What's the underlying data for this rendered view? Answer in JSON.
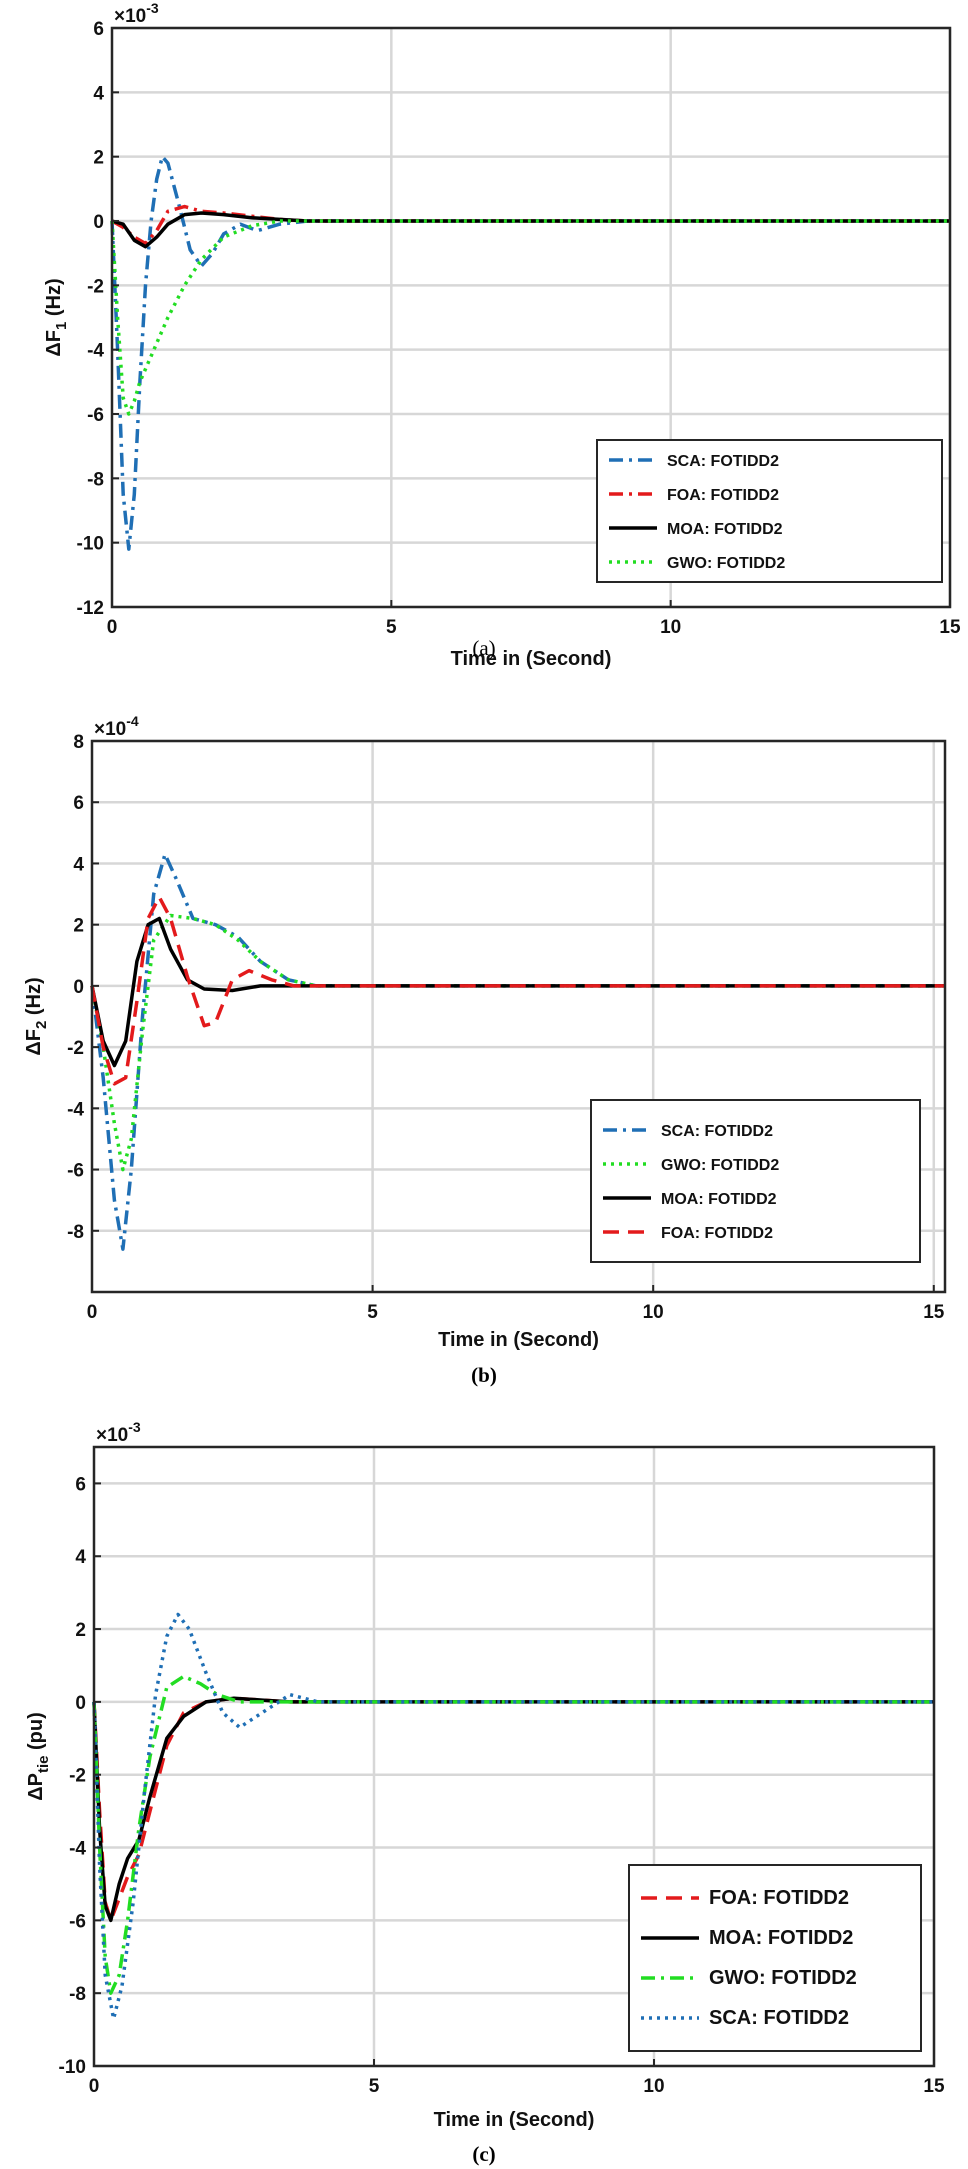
{
  "chart_data": [
    {
      "type": "line",
      "caption": "(a)",
      "exponent": "×10",
      "exponent_power": "-3",
      "ylabel_prefix": "ΔF",
      "ylabel_sub": "1",
      "ylabel_suffix": " (Hz)",
      "xlabel": "Time in (Second)",
      "xlim": [
        0,
        15
      ],
      "ylim": [
        -12,
        6
      ],
      "xticks": [
        0,
        5,
        10,
        15
      ],
      "yticks": [
        -12,
        -10,
        -8,
        -6,
        -4,
        -2,
        0,
        2,
        4,
        6
      ],
      "legend_position": "bottom-right",
      "series": [
        {
          "name": "SCA: FOTIDD2",
          "color": "#1f6fb5",
          "style": "dashdot",
          "x": [
            0,
            0.1,
            0.2,
            0.3,
            0.4,
            0.5,
            0.6,
            0.7,
            0.8,
            0.9,
            1.0,
            1.2,
            1.4,
            1.6,
            1.8,
            2.0,
            2.3,
            2.6,
            3.0,
            3.5,
            4.0,
            15
          ],
          "y": [
            0,
            -4,
            -8.5,
            -10.2,
            -8.5,
            -5,
            -2,
            0,
            1.3,
            2.0,
            1.8,
            0.5,
            -0.9,
            -1.4,
            -1.0,
            -0.4,
            -0.1,
            -0.3,
            -0.1,
            0,
            0,
            0
          ]
        },
        {
          "name": "FOA: FOTIDD2",
          "color": "#e31a1c",
          "style": "dashdot",
          "x": [
            0,
            0.2,
            0.4,
            0.6,
            0.8,
            1.0,
            1.3,
            1.6,
            2.0,
            2.5,
            3.0,
            3.5,
            15
          ],
          "y": [
            0,
            -0.2,
            -0.5,
            -0.7,
            -0.3,
            0.3,
            0.45,
            0.3,
            0.25,
            0.15,
            0.05,
            0,
            0
          ]
        },
        {
          "name": "MOA: FOTIDD2",
          "color": "#000000",
          "style": "solid",
          "x": [
            0,
            0.2,
            0.4,
            0.6,
            0.8,
            1.0,
            1.3,
            1.6,
            2.0,
            2.5,
            3.0,
            3.5,
            15
          ],
          "y": [
            0,
            -0.1,
            -0.6,
            -0.8,
            -0.5,
            -0.1,
            0.2,
            0.25,
            0.2,
            0.1,
            0.05,
            0,
            0
          ]
        },
        {
          "name": "GWO: FOTIDD2",
          "color": "#22dd22",
          "style": "dotted",
          "x": [
            0,
            0.1,
            0.2,
            0.3,
            0.4,
            0.5,
            0.6,
            0.8,
            1.0,
            1.3,
            1.6,
            2.0,
            2.5,
            3.0,
            3.5,
            4.0,
            15
          ],
          "y": [
            0,
            -3,
            -5.5,
            -6.0,
            -5.6,
            -5.0,
            -4.6,
            -3.8,
            -3.0,
            -2.0,
            -1.2,
            -0.5,
            -0.15,
            0,
            0,
            0,
            0
          ]
        }
      ]
    },
    {
      "type": "line",
      "caption": "(b)",
      "exponent": "×10",
      "exponent_power": "-4",
      "ylabel_prefix": "ΔF",
      "ylabel_sub": "2",
      "ylabel_suffix": " (Hz)",
      "xlabel": "Time in (Second)",
      "xlim": [
        0,
        15.2
      ],
      "ylim": [
        -10,
        8
      ],
      "xticks": [
        0,
        5,
        10,
        15
      ],
      "yticks": [
        -8,
        -6,
        -4,
        -2,
        0,
        2,
        4,
        6,
        8
      ],
      "legend_position": "bottom-right",
      "series": [
        {
          "name": "SCA: FOTIDD2",
          "color": "#1f6fb5",
          "style": "dashdot",
          "x": [
            0,
            0.2,
            0.4,
            0.55,
            0.7,
            0.9,
            1.1,
            1.3,
            1.5,
            1.8,
            2.2,
            2.6,
            3.0,
            3.5,
            4.0,
            15.2
          ],
          "y": [
            0,
            -3,
            -7,
            -8.6,
            -6,
            -1,
            3,
            4.3,
            3.5,
            2.2,
            2.0,
            1.6,
            0.8,
            0.2,
            0,
            0
          ]
        },
        {
          "name": "GWO: FOTIDD2",
          "color": "#22dd22",
          "style": "dotted",
          "x": [
            0,
            0.2,
            0.4,
            0.55,
            0.7,
            0.9,
            1.1,
            1.4,
            1.8,
            2.2,
            2.6,
            3.0,
            3.5,
            4.0,
            15.2
          ],
          "y": [
            0,
            -2,
            -4.5,
            -6,
            -5,
            -1.5,
            1.5,
            2.3,
            2.2,
            2.0,
            1.5,
            0.8,
            0.2,
            0,
            0
          ]
        },
        {
          "name": "MOA: FOTIDD2",
          "color": "#000000",
          "style": "solid",
          "x": [
            0,
            0.2,
            0.4,
            0.6,
            0.8,
            1.0,
            1.2,
            1.4,
            1.7,
            2.0,
            2.5,
            3.0,
            4.0,
            15.2
          ],
          "y": [
            0,
            -1.8,
            -2.6,
            -1.8,
            0.8,
            2.0,
            2.2,
            1.2,
            0.2,
            -0.1,
            -0.15,
            0,
            0,
            0
          ]
        },
        {
          "name": "FOA: FOTIDD2",
          "color": "#e31a1c",
          "style": "dashed",
          "x": [
            0,
            0.2,
            0.4,
            0.6,
            0.8,
            1.0,
            1.2,
            1.4,
            1.7,
            2.0,
            2.2,
            2.5,
            2.8,
            3.2,
            3.6,
            15.2
          ],
          "y": [
            0,
            -2,
            -3.2,
            -3.0,
            -0.5,
            2.2,
            2.9,
            2.2,
            0.3,
            -1.3,
            -1.2,
            0.2,
            0.5,
            0.2,
            0,
            0
          ]
        }
      ]
    },
    {
      "type": "line",
      "caption": "(c)",
      "exponent": "×10",
      "exponent_power": "-3",
      "ylabel_prefix": "ΔP",
      "ylabel_sub": "tie",
      "ylabel_suffix": " (pu)",
      "xlabel": "Time in (Second)",
      "xlim": [
        0,
        15
      ],
      "ylim": [
        -10,
        7
      ],
      "xticks": [
        0,
        5,
        10,
        15
      ],
      "yticks": [
        -10,
        -8,
        -6,
        -4,
        -2,
        0,
        2,
        4,
        6
      ],
      "legend_position": "bottom-right",
      "series": [
        {
          "name": "FOA: FOTIDD2",
          "color": "#e31a1c",
          "style": "dashed",
          "x": [
            0,
            0.1,
            0.2,
            0.3,
            0.45,
            0.6,
            0.8,
            1.0,
            1.3,
            1.6,
            2.0,
            2.5,
            3.0,
            3.5,
            15
          ],
          "y": [
            0,
            -3,
            -5.5,
            -6.0,
            -5.4,
            -4.8,
            -4.2,
            -3.0,
            -1.2,
            -0.3,
            0,
            0.1,
            0.05,
            0,
            0
          ]
        },
        {
          "name": "MOA: FOTIDD2",
          "color": "#000000",
          "style": "solid",
          "x": [
            0,
            0.1,
            0.2,
            0.3,
            0.45,
            0.6,
            0.8,
            1.0,
            1.3,
            1.6,
            2.0,
            2.5,
            3.0,
            3.5,
            15
          ],
          "y": [
            0,
            -3.5,
            -5.6,
            -6.0,
            -5.0,
            -4.3,
            -3.8,
            -2.6,
            -1.0,
            -0.4,
            0,
            0.1,
            0.05,
            0,
            0
          ]
        },
        {
          "name": "GWO: FOTIDD2",
          "color": "#22dd22",
          "style": "dashdot",
          "x": [
            0,
            0.1,
            0.2,
            0.3,
            0.45,
            0.6,
            0.8,
            1.0,
            1.3,
            1.6,
            1.9,
            2.2,
            2.6,
            3.0,
            15
          ],
          "y": [
            0,
            -4,
            -7,
            -8.0,
            -7.5,
            -6.0,
            -3.5,
            -1.5,
            0.4,
            0.7,
            0.5,
            0.2,
            0,
            0,
            0
          ]
        },
        {
          "name": "SCA: FOTIDD2",
          "color": "#1f6fb5",
          "style": "dotted",
          "x": [
            0,
            0.1,
            0.2,
            0.35,
            0.5,
            0.7,
            0.9,
            1.1,
            1.3,
            1.5,
            1.7,
            2.0,
            2.3,
            2.6,
            3.0,
            3.5,
            4.0,
            15
          ],
          "y": [
            0,
            -4.5,
            -7.5,
            -8.7,
            -7.8,
            -5.5,
            -2.5,
            0.2,
            1.8,
            2.4,
            2.0,
            0.8,
            -0.3,
            -0.7,
            -0.3,
            0.2,
            0,
            0
          ]
        }
      ]
    }
  ]
}
